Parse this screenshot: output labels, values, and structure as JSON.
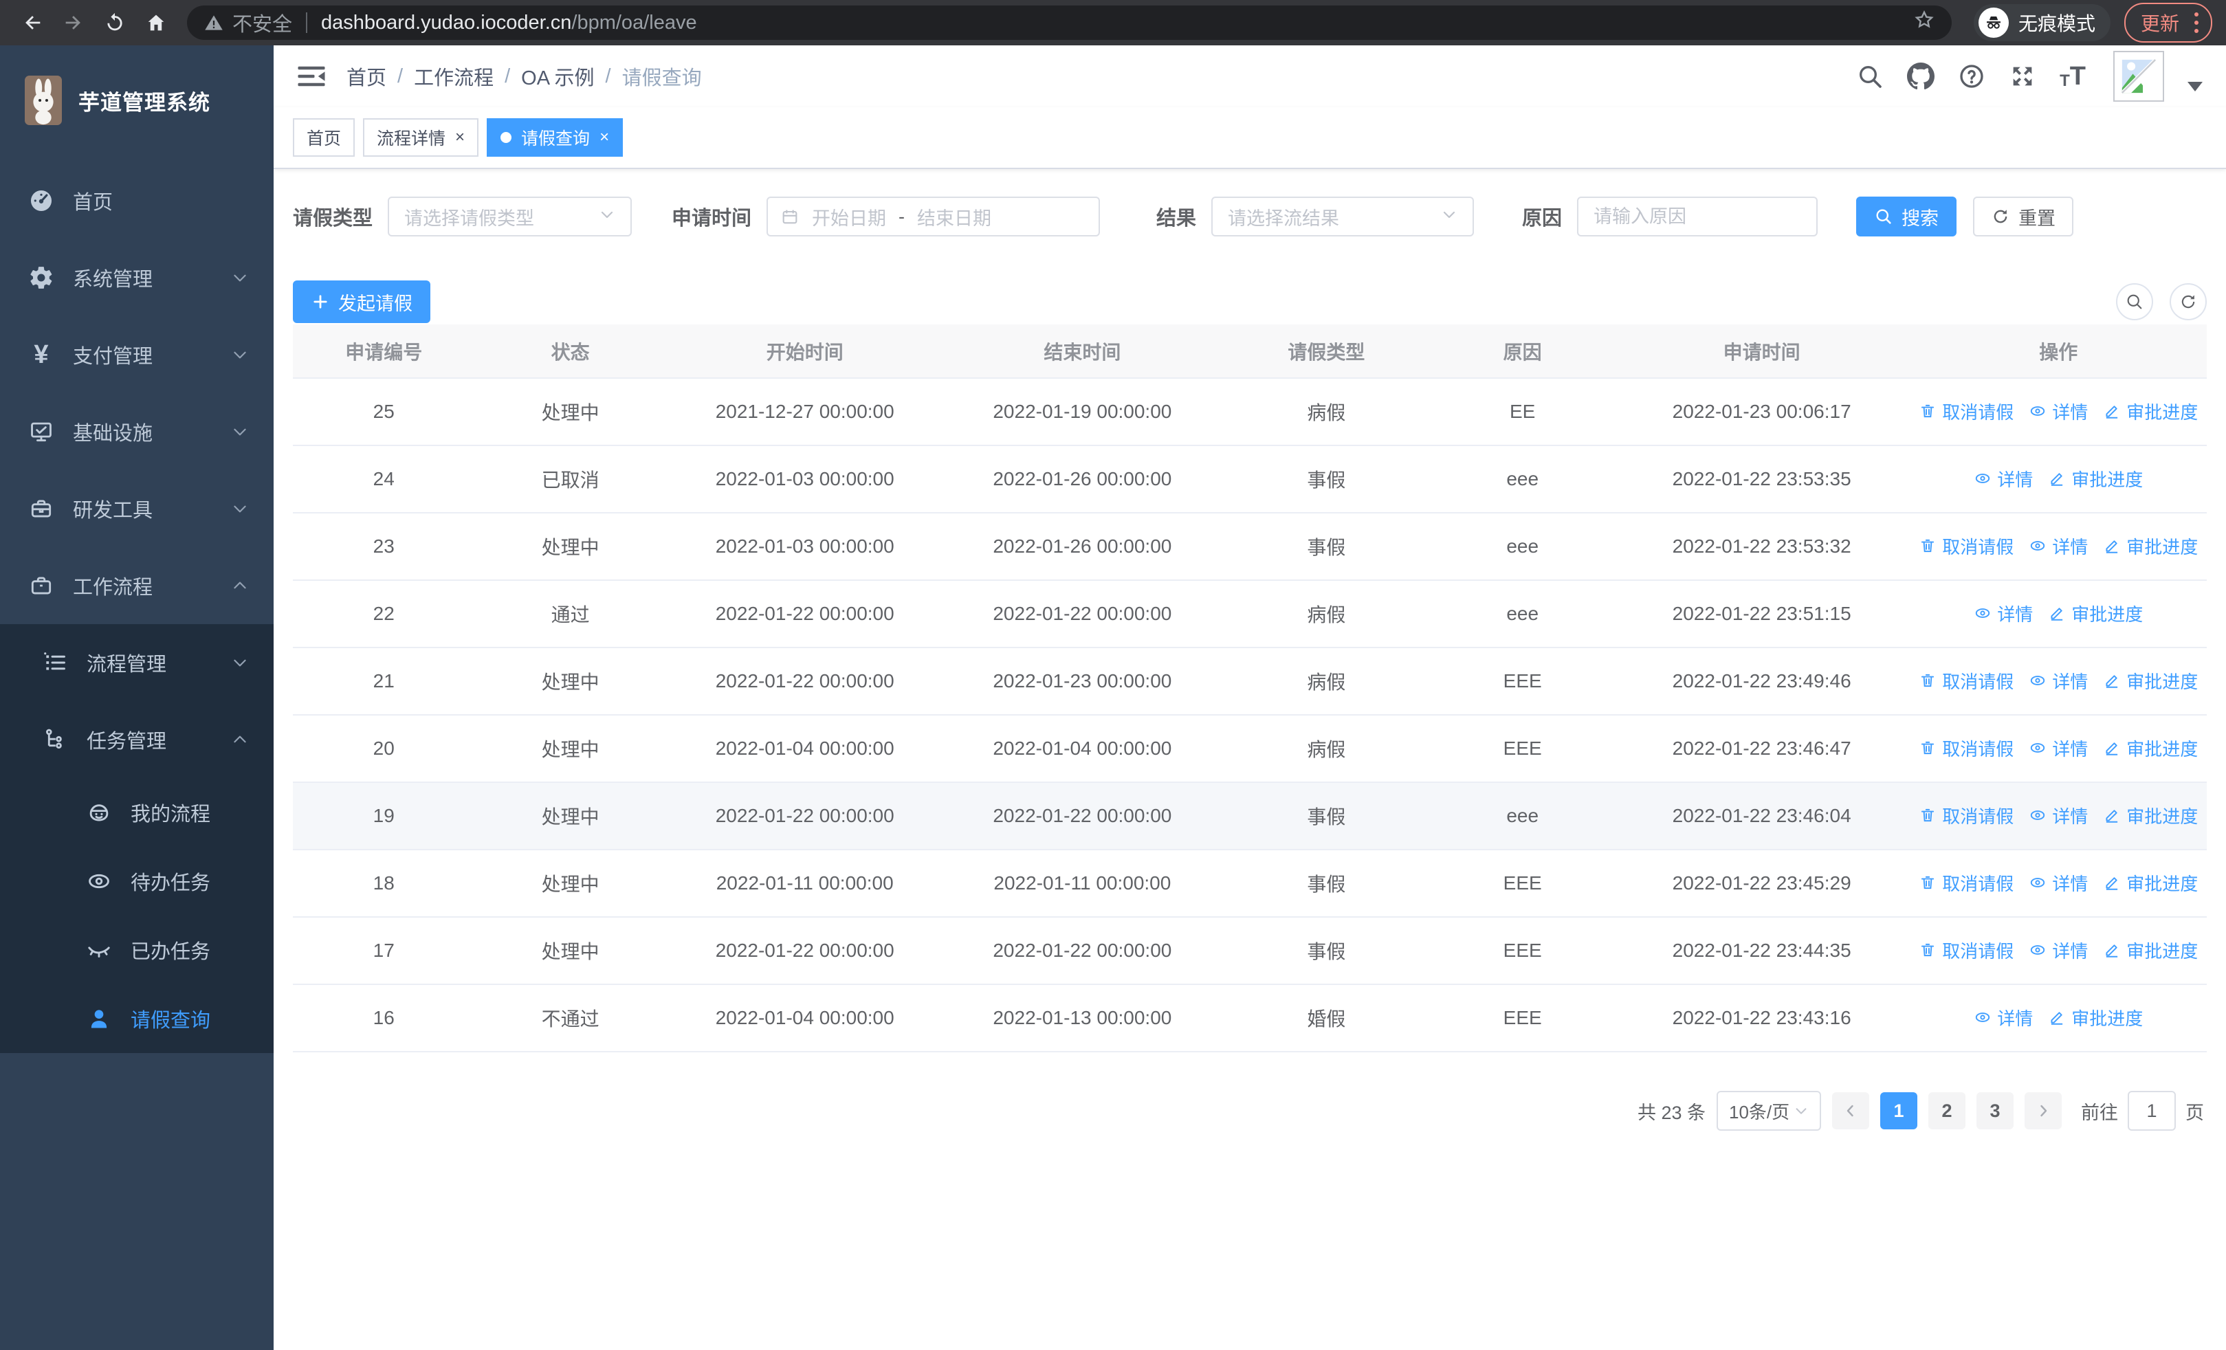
{
  "colors": {
    "primary": "#409eff",
    "sidebar_bg": "#304156",
    "submenu_bg": "#1f2d3d",
    "update_red": "#f28b82",
    "link": "#409eff"
  },
  "browser": {
    "security_label": "不安全",
    "url_host": "dashboard.yudao.iocoder.cn",
    "url_path": "/bpm/oa/leave",
    "incognito_label": "无痕模式",
    "update_label": "更新"
  },
  "app": {
    "title": "芋道管理系统"
  },
  "sidebar": {
    "items": [
      {
        "key": "home",
        "label": "首页",
        "icon": "dashboard-icon",
        "level": 1
      },
      {
        "key": "system",
        "label": "系统管理",
        "icon": "gear-icon",
        "level": 1,
        "chevron": "down"
      },
      {
        "key": "pay",
        "label": "支付管理",
        "icon": "yen-icon",
        "level": 1,
        "chevron": "down"
      },
      {
        "key": "infra",
        "label": "基础设施",
        "icon": "monitor-icon",
        "level": 1,
        "chevron": "down"
      },
      {
        "key": "devtools",
        "label": "研发工具",
        "icon": "toolbox-icon",
        "level": 1,
        "chevron": "down"
      },
      {
        "key": "workflow",
        "label": "工作流程",
        "icon": "briefcase-icon",
        "level": 1,
        "chevron": "up"
      },
      {
        "key": "process-mgmt",
        "label": "流程管理",
        "icon": "list-icon",
        "level": 2,
        "chevron": "down"
      },
      {
        "key": "task-mgmt",
        "label": "任务管理",
        "icon": "tree-icon",
        "level": 2,
        "chevron": "up"
      },
      {
        "key": "my-process",
        "label": "我的流程",
        "icon": "robot-icon",
        "level": 3
      },
      {
        "key": "todo-tasks",
        "label": "待办任务",
        "icon": "eye-icon",
        "level": 3
      },
      {
        "key": "done-tasks",
        "label": "已办任务",
        "icon": "eye-closed-icon",
        "level": 3
      },
      {
        "key": "leave-query",
        "label": "请假查询",
        "icon": "user-icon",
        "level": 3,
        "active": true
      }
    ]
  },
  "breadcrumb": {
    "items": [
      "首页",
      "工作流程",
      "OA 示例",
      "请假查询"
    ]
  },
  "tabs": [
    {
      "label": "首页",
      "closable": false,
      "active": false
    },
    {
      "label": "流程详情",
      "closable": true,
      "active": false
    },
    {
      "label": "请假查询",
      "closable": true,
      "active": true
    }
  ],
  "filters": {
    "leave_type_label": "请假类型",
    "leave_type_placeholder": "请选择请假类型",
    "apply_time_label": "申请时间",
    "start_placeholder": "开始日期",
    "range_separator": "-",
    "end_placeholder": "结束日期",
    "result_label": "结果",
    "result_placeholder": "请选择流结果",
    "reason_label": "原因",
    "reason_placeholder": "请输入原因",
    "search_label": "搜索",
    "reset_label": "重置"
  },
  "toolbar": {
    "create_label": "发起请假"
  },
  "table": {
    "headers": [
      "申请编号",
      "状态",
      "开始时间",
      "结束时间",
      "请假类型",
      "原因",
      "申请时间",
      "操作"
    ],
    "action_labels": {
      "cancel": "取消请假",
      "detail": "详情",
      "progress": "审批进度"
    },
    "rows": [
      {
        "id": "25",
        "status": "处理中",
        "start": "2021-12-27 00:00:00",
        "end": "2022-01-19 00:00:00",
        "type": "病假",
        "reason": "EE",
        "applied": "2022-01-23 00:06:17",
        "actions": [
          "cancel",
          "detail",
          "progress"
        ]
      },
      {
        "id": "24",
        "status": "已取消",
        "start": "2022-01-03 00:00:00",
        "end": "2022-01-26 00:00:00",
        "type": "事假",
        "reason": "eee",
        "applied": "2022-01-22 23:53:35",
        "actions": [
          "detail",
          "progress"
        ]
      },
      {
        "id": "23",
        "status": "处理中",
        "start": "2022-01-03 00:00:00",
        "end": "2022-01-26 00:00:00",
        "type": "事假",
        "reason": "eee",
        "applied": "2022-01-22 23:53:32",
        "actions": [
          "cancel",
          "detail",
          "progress"
        ]
      },
      {
        "id": "22",
        "status": "通过",
        "start": "2022-01-22 00:00:00",
        "end": "2022-01-22 00:00:00",
        "type": "病假",
        "reason": "eee",
        "applied": "2022-01-22 23:51:15",
        "actions": [
          "detail",
          "progress"
        ]
      },
      {
        "id": "21",
        "status": "处理中",
        "start": "2022-01-22 00:00:00",
        "end": "2022-01-23 00:00:00",
        "type": "病假",
        "reason": "EEE",
        "applied": "2022-01-22 23:49:46",
        "actions": [
          "cancel",
          "detail",
          "progress"
        ]
      },
      {
        "id": "20",
        "status": "处理中",
        "start": "2022-01-04 00:00:00",
        "end": "2022-01-04 00:00:00",
        "type": "病假",
        "reason": "EEE",
        "applied": "2022-01-22 23:46:47",
        "actions": [
          "cancel",
          "detail",
          "progress"
        ]
      },
      {
        "id": "19",
        "status": "处理中",
        "start": "2022-01-22 00:00:00",
        "end": "2022-01-22 00:00:00",
        "type": "事假",
        "reason": "eee",
        "applied": "2022-01-22 23:46:04",
        "actions": [
          "cancel",
          "detail",
          "progress"
        ],
        "highlight": true
      },
      {
        "id": "18",
        "status": "处理中",
        "start": "2022-01-11 00:00:00",
        "end": "2022-01-11 00:00:00",
        "type": "事假",
        "reason": "EEE",
        "applied": "2022-01-22 23:45:29",
        "actions": [
          "cancel",
          "detail",
          "progress"
        ]
      },
      {
        "id": "17",
        "status": "处理中",
        "start": "2022-01-22 00:00:00",
        "end": "2022-01-22 00:00:00",
        "type": "事假",
        "reason": "EEE",
        "applied": "2022-01-22 23:44:35",
        "actions": [
          "cancel",
          "detail",
          "progress"
        ]
      },
      {
        "id": "16",
        "status": "不通过",
        "start": "2022-01-04 00:00:00",
        "end": "2022-01-13 00:00:00",
        "type": "婚假",
        "reason": "EEE",
        "applied": "2022-01-22 23:43:16",
        "actions": [
          "detail",
          "progress"
        ]
      }
    ]
  },
  "pagination": {
    "total_text": "共 23 条",
    "page_size": "10条/页",
    "pages": [
      "1",
      "2",
      "3"
    ],
    "active_page": "1",
    "goto_label": "前往",
    "goto_value": "1",
    "page_unit": "页"
  }
}
